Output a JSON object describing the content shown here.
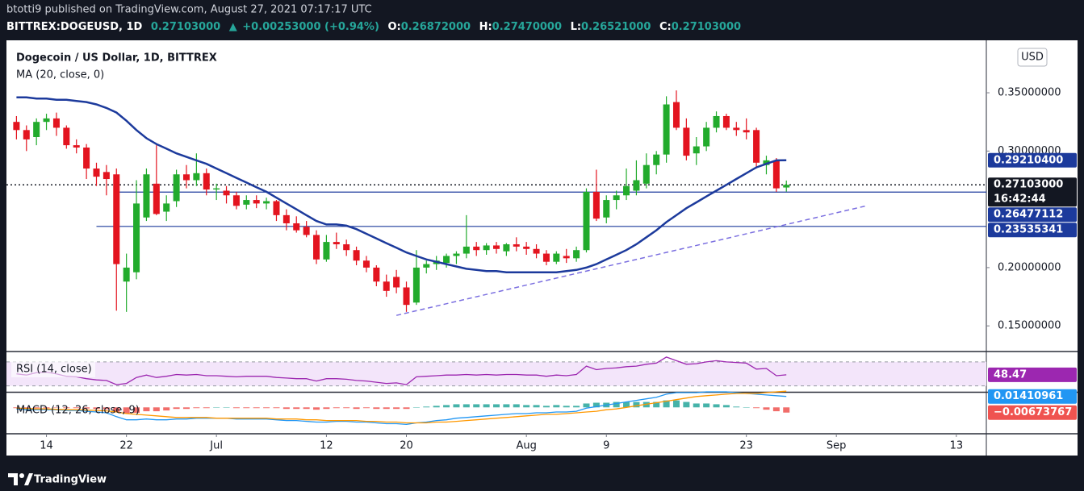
{
  "header": {
    "published": "btotti9 published on TradingView.com, August 27, 2021 07:17:17 UTC",
    "symbol": "BITTREX:DOGEUSD, 1D",
    "last": "0.27103000",
    "arrow": "▲",
    "change": "+0.00253000 (+0.94%)",
    "ohlc": [
      {
        "key": "O:",
        "value": "0.26872000"
      },
      {
        "key": "H:",
        "value": "0.27470000"
      },
      {
        "key": "L:",
        "value": "0.26521000"
      },
      {
        "key": "C:",
        "value": "0.27103000"
      }
    ]
  },
  "footer": {
    "brand": "TradingView"
  },
  "chart_data": [
    {
      "type": "candlestick",
      "title": "Dogecoin / US Dollar, 1D, BITTREX",
      "currency": "USD",
      "x": [
        "Jun 11",
        "Jun 12",
        "Jun 13",
        "Jun 14",
        "Jun 15",
        "Jun 16",
        "Jun 17",
        "Jun 18",
        "Jun 19",
        "Jun 20",
        "Jun 21",
        "Jun 22",
        "Jun 23",
        "Jun 24",
        "Jun 25",
        "Jun 26",
        "Jun 27",
        "Jun 28",
        "Jun 29",
        "Jun 30",
        "Jul 1",
        "Jul 2",
        "Jul 3",
        "Jul 4",
        "Jul 5",
        "Jul 6",
        "Jul 7",
        "Jul 8",
        "Jul 9",
        "Jul 10",
        "Jul 11",
        "Jul 12",
        "Jul 13",
        "Jul 14",
        "Jul 15",
        "Jul 16",
        "Jul 17",
        "Jul 18",
        "Jul 19",
        "Jul 20",
        "Jul 21",
        "Jul 22",
        "Jul 23",
        "Jul 24",
        "Jul 25",
        "Jul 26",
        "Jul 27",
        "Jul 28",
        "Jul 29",
        "Jul 30",
        "Jul 31",
        "Aug 1",
        "Aug 2",
        "Aug 3",
        "Aug 4",
        "Aug 5",
        "Aug 6",
        "Aug 7",
        "Aug 8",
        "Aug 9",
        "Aug 10",
        "Aug 11",
        "Aug 12",
        "Aug 13",
        "Aug 14",
        "Aug 15",
        "Aug 16",
        "Aug 17",
        "Aug 18",
        "Aug 19",
        "Aug 20",
        "Aug 21",
        "Aug 22",
        "Aug 23",
        "Aug 24",
        "Aug 25",
        "Aug 26",
        "Aug 27"
      ],
      "open": [
        0.325,
        0.318,
        0.312,
        0.325,
        0.328,
        0.32,
        0.305,
        0.303,
        0.285,
        0.282,
        0.28,
        0.188,
        0.196,
        0.243,
        0.272,
        0.248,
        0.257,
        0.28,
        0.275,
        0.281,
        0.267,
        0.266,
        0.262,
        0.254,
        0.258,
        0.255,
        0.257,
        0.245,
        0.238,
        0.235,
        0.228,
        0.207,
        0.222,
        0.22,
        0.215,
        0.206,
        0.2,
        0.188,
        0.192,
        0.183,
        0.17,
        0.2,
        0.203,
        0.204,
        0.21,
        0.212,
        0.218,
        0.215,
        0.219,
        0.214,
        0.22,
        0.218,
        0.216,
        0.212,
        0.205,
        0.21,
        0.208,
        0.215,
        0.265,
        0.243,
        0.258,
        0.262,
        0.266,
        0.272,
        0.288,
        0.297,
        0.342,
        0.32,
        0.298,
        0.304,
        0.32,
        0.33,
        0.32,
        0.318,
        0.318,
        0.288,
        0.292,
        0.26872
      ],
      "high": [
        0.33,
        0.322,
        0.328,
        0.332,
        0.333,
        0.322,
        0.31,
        0.306,
        0.29,
        0.288,
        0.285,
        0.212,
        0.275,
        0.285,
        0.305,
        0.262,
        0.284,
        0.288,
        0.298,
        0.285,
        0.272,
        0.27,
        0.265,
        0.262,
        0.262,
        0.26,
        0.258,
        0.25,
        0.244,
        0.24,
        0.232,
        0.228,
        0.23,
        0.224,
        0.218,
        0.21,
        0.202,
        0.194,
        0.198,
        0.188,
        0.215,
        0.206,
        0.21,
        0.212,
        0.214,
        0.245,
        0.222,
        0.221,
        0.222,
        0.221,
        0.226,
        0.222,
        0.22,
        0.215,
        0.214,
        0.216,
        0.218,
        0.268,
        0.284,
        0.262,
        0.266,
        0.285,
        0.292,
        0.298,
        0.3,
        0.347,
        0.352,
        0.328,
        0.312,
        0.325,
        0.334,
        0.332,
        0.325,
        0.328,
        0.32,
        0.296,
        0.294,
        0.2747
      ],
      "low": [
        0.31,
        0.3,
        0.305,
        0.318,
        0.313,
        0.302,
        0.298,
        0.276,
        0.27,
        0.262,
        0.163,
        0.162,
        0.19,
        0.24,
        0.245,
        0.24,
        0.252,
        0.268,
        0.27,
        0.262,
        0.258,
        0.255,
        0.25,
        0.25,
        0.251,
        0.25,
        0.24,
        0.232,
        0.23,
        0.226,
        0.203,
        0.205,
        0.216,
        0.21,
        0.202,
        0.196,
        0.184,
        0.175,
        0.178,
        0.162,
        0.168,
        0.195,
        0.198,
        0.2,
        0.203,
        0.208,
        0.21,
        0.211,
        0.212,
        0.21,
        0.214,
        0.211,
        0.208,
        0.202,
        0.203,
        0.204,
        0.205,
        0.213,
        0.24,
        0.238,
        0.25,
        0.258,
        0.262,
        0.268,
        0.28,
        0.29,
        0.318,
        0.292,
        0.288,
        0.3,
        0.316,
        0.318,
        0.313,
        0.31,
        0.285,
        0.28,
        0.265,
        0.26521
      ],
      "close": [
        0.318,
        0.31,
        0.325,
        0.328,
        0.32,
        0.305,
        0.303,
        0.285,
        0.278,
        0.276,
        0.203,
        0.2,
        0.255,
        0.28,
        0.246,
        0.255,
        0.28,
        0.275,
        0.281,
        0.267,
        0.268,
        0.262,
        0.253,
        0.258,
        0.255,
        0.257,
        0.245,
        0.238,
        0.232,
        0.228,
        0.207,
        0.222,
        0.22,
        0.215,
        0.206,
        0.2,
        0.188,
        0.18,
        0.183,
        0.168,
        0.2,
        0.203,
        0.206,
        0.21,
        0.212,
        0.218,
        0.215,
        0.219,
        0.216,
        0.22,
        0.218,
        0.216,
        0.212,
        0.205,
        0.212,
        0.208,
        0.215,
        0.265,
        0.242,
        0.258,
        0.262,
        0.27,
        0.275,
        0.288,
        0.297,
        0.34,
        0.32,
        0.296,
        0.304,
        0.32,
        0.33,
        0.32,
        0.318,
        0.316,
        0.29,
        0.292,
        0.268,
        0.27103
      ],
      "up_color": "#22ab2c",
      "down_color": "#e3141f",
      "series": [
        {
          "name": "MA (20, close, 0)",
          "color": "#1c3a9c",
          "last_label": "0.29210400",
          "values": [
            0.346,
            0.346,
            0.345,
            0.345,
            0.344,
            0.344,
            0.343,
            0.342,
            0.34,
            0.337,
            0.333,
            0.326,
            0.318,
            0.311,
            0.306,
            0.302,
            0.298,
            0.295,
            0.292,
            0.289,
            0.285,
            0.281,
            0.277,
            0.273,
            0.269,
            0.265,
            0.26,
            0.255,
            0.25,
            0.245,
            0.24,
            0.237,
            0.237,
            0.236,
            0.233,
            0.229,
            0.225,
            0.221,
            0.217,
            0.213,
            0.21,
            0.207,
            0.205,
            0.203,
            0.201,
            0.199,
            0.198,
            0.197,
            0.197,
            0.196,
            0.196,
            0.196,
            0.196,
            0.196,
            0.196,
            0.197,
            0.198,
            0.2,
            0.203,
            0.207,
            0.211,
            0.215,
            0.22,
            0.226,
            0.232,
            0.239,
            0.245,
            0.251,
            0.256,
            0.261,
            0.266,
            0.271,
            0.276,
            0.281,
            0.286,
            0.289,
            0.292,
            0.292104
          ]
        }
      ],
      "last_price_label": "0.27103000",
      "countdown": "16:42:44",
      "last_price_color": "#131722",
      "hlines": [
        {
          "value": 0.26477112,
          "from": "Jun 21",
          "color": "#1c3a9c"
        },
        {
          "value": 0.23535341,
          "from": "Jun 19",
          "color": "#1c3a9c"
        }
      ],
      "trendline": {
        "x": [
          "Jul 19",
          "Sep 4"
        ],
        "y": [
          0.159,
          0.253
        ],
        "color": "#7b6fe0"
      },
      "xlim": [
        "Jun 10",
        "Sep 16"
      ],
      "ylim": [
        0.128,
        0.395
      ],
      "xticks": [
        {
          "value": "Jun 14",
          "label": "14"
        },
        {
          "value": "Jun 22",
          "label": "22"
        },
        {
          "value": "Jul 1",
          "label": "Jul"
        },
        {
          "value": "Jul 12",
          "label": "12"
        },
        {
          "value": "Jul 20",
          "label": "20"
        },
        {
          "value": "Aug 1",
          "label": "Aug"
        },
        {
          "value": "Aug 9",
          "label": "9"
        },
        {
          "value": "Aug 23",
          "label": "23"
        },
        {
          "value": "Sep 1",
          "label": "Sep"
        },
        {
          "value": "Sep 13",
          "label": "13"
        }
      ],
      "yticks": [
        {
          "value": 0.15,
          "label": "0.15000000"
        },
        {
          "value": 0.2,
          "label": "0.20000000"
        },
        {
          "value": 0.3,
          "label": "0.30000000"
        },
        {
          "value": 0.35,
          "label": "0.35000000"
        }
      ]
    },
    {
      "type": "line",
      "title": "RSI (14, close)",
      "series": [
        {
          "color": "#9c27b0",
          "values": [
            50,
            48,
            52,
            53,
            50,
            46,
            45,
            42,
            40,
            39,
            32,
            34,
            44,
            48,
            44,
            46,
            49,
            48,
            49,
            47,
            47,
            46,
            45,
            46,
            46,
            46,
            44,
            43,
            42,
            42,
            38,
            42,
            42,
            41,
            39,
            38,
            36,
            34,
            35,
            32,
            45,
            46,
            47,
            48,
            48,
            49,
            48,
            49,
            48,
            49,
            49,
            48,
            48,
            46,
            48,
            47,
            49,
            63,
            57,
            59,
            60,
            62,
            63,
            66,
            68,
            78,
            72,
            66,
            67,
            70,
            72,
            70,
            69,
            68,
            58,
            59,
            47,
            48.47
          ]
        }
      ],
      "band": [
        30,
        70
      ],
      "band_color": "#f3e5fa",
      "ylim": [
        20,
        86
      ]
    },
    {
      "type": "macd",
      "title": "MACD (12, 26, close, 9)",
      "series": [
        {
          "color": "#2196f3",
          "values": [
            -0.002,
            -0.003,
            -0.003,
            -0.003,
            -0.003,
            -0.004,
            -0.004,
            -0.005,
            -0.006,
            -0.007,
            -0.012,
            -0.016,
            -0.016,
            -0.015,
            -0.016,
            -0.016,
            -0.015,
            -0.015,
            -0.014,
            -0.014,
            -0.014,
            -0.014,
            -0.015,
            -0.015,
            -0.015,
            -0.015,
            -0.016,
            -0.017,
            -0.017,
            -0.018,
            -0.019,
            -0.019,
            -0.018,
            -0.018,
            -0.019,
            -0.019,
            -0.02,
            -0.021,
            -0.021,
            -0.022,
            -0.02,
            -0.019,
            -0.017,
            -0.016,
            -0.014,
            -0.013,
            -0.012,
            -0.011,
            -0.01,
            -0.009,
            -0.008,
            -0.008,
            -0.007,
            -0.007,
            -0.006,
            -0.006,
            -0.005,
            -0.001,
            0.001,
            0.003,
            0.005,
            0.007,
            0.009,
            0.011,
            0.013,
            0.017,
            0.019,
            0.019,
            0.019,
            0.02,
            0.02,
            0.02,
            0.019,
            0.018,
            0.017,
            0.016,
            0.015,
            0.01410961
          ]
        },
        {
          "color": "#ff9800",
          "values": [
            -0.001,
            -0.0015,
            -0.002,
            -0.002,
            -0.0025,
            -0.003,
            -0.003,
            -0.0035,
            -0.004,
            -0.0045,
            -0.006,
            -0.008,
            -0.009,
            -0.01,
            -0.011,
            -0.012,
            -0.013,
            -0.013,
            -0.013,
            -0.013,
            -0.014,
            -0.014,
            -0.014,
            -0.014,
            -0.014,
            -0.014,
            -0.015,
            -0.015,
            -0.015,
            -0.016,
            -0.016,
            -0.017,
            -0.017,
            -0.017,
            -0.017,
            -0.018,
            -0.018,
            -0.019,
            -0.019,
            -0.02,
            -0.02,
            -0.02,
            -0.019,
            -0.019,
            -0.018,
            -0.017,
            -0.016,
            -0.015,
            -0.014,
            -0.013,
            -0.012,
            -0.011,
            -0.01,
            -0.009,
            -0.009,
            -0.008,
            -0.007,
            -0.006,
            -0.005,
            -0.003,
            -0.002,
            0.0,
            0.002,
            0.004,
            0.006,
            0.008,
            0.01,
            0.012,
            0.014,
            0.015,
            0.016,
            0.017,
            0.018,
            0.018,
            0.018,
            0.019,
            0.02,
            0.02084728
          ]
        }
      ],
      "histogram": {
        "up_color": "#26a69a",
        "down_color": "#ef5350",
        "last_label": "−0.00673767",
        "values": [
          -0.001,
          -0.0015,
          -0.001,
          -0.001,
          -0.0005,
          -0.001,
          -0.001,
          -0.0015,
          -0.002,
          -0.0025,
          -0.006,
          -0.008,
          -0.007,
          -0.005,
          -0.005,
          -0.004,
          -0.002,
          -0.002,
          -0.001,
          -0.001,
          0,
          0,
          -0.001,
          -0.001,
          -0.001,
          -0.001,
          -0.001,
          -0.002,
          -0.002,
          -0.002,
          -0.003,
          -0.002,
          -0.001,
          -0.001,
          -0.002,
          -0.001,
          -0.002,
          -0.002,
          -0.002,
          -0.002,
          0,
          0.001,
          0.002,
          0.003,
          0.004,
          0.004,
          0.004,
          0.004,
          0.004,
          0.004,
          0.004,
          0.003,
          0.003,
          0.002,
          0.003,
          0.002,
          0.002,
          0.005,
          0.006,
          0.006,
          0.007,
          0.007,
          0.007,
          0.007,
          0.007,
          0.009,
          0.009,
          0.007,
          0.005,
          0.005,
          0.004,
          0.003,
          0.001,
          0,
          -0.001,
          -0.003,
          -0.005,
          -0.00673767
        ]
      },
      "ylim": [
        -0.033,
        0.019
      ]
    }
  ]
}
